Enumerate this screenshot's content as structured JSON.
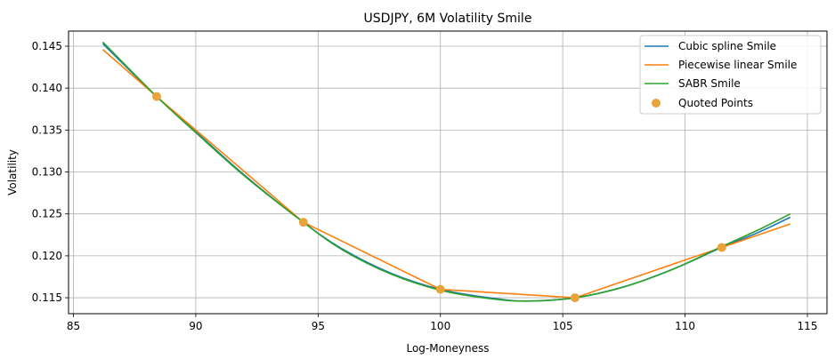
{
  "chart_data": {
    "type": "line",
    "title": "USDJPY, 6M Volatility Smile",
    "xlabel": "Log-Moneyness",
    "ylabel": "Volatility",
    "xlim": [
      84.8,
      115.8
    ],
    "ylim": [
      0.1131,
      0.1468
    ],
    "xticks": [
      85,
      90,
      95,
      100,
      105,
      110,
      115
    ],
    "yticks": [
      0.115,
      0.12,
      0.125,
      0.13,
      0.135,
      0.14,
      0.145
    ],
    "ytick_format": 3,
    "grid": true,
    "legend_position": "top-right",
    "series": [
      {
        "name": "Cubic spline Smile",
        "color": "#1f77b4",
        "x": [
          86.2,
          88.4,
          90,
          92,
          94.4,
          96,
          98,
          100,
          102,
          103.5,
          105.5,
          107.5,
          109.5,
          111.5,
          113,
          114.3
        ],
        "y": [
          0.1453,
          0.139,
          0.1348,
          0.1296,
          0.124,
          0.1208,
          0.1179,
          0.116,
          0.115,
          0.1146,
          0.115,
          0.1163,
          0.1184,
          0.121,
          0.1228,
          0.1246
        ]
      },
      {
        "name": "Piecewise linear Smile",
        "color": "#ff7f0e",
        "x": [
          86.2,
          88.4,
          94.4,
          100,
          105.5,
          111.5,
          114.3
        ],
        "y": [
          0.1446,
          0.139,
          0.124,
          0.116,
          0.115,
          0.121,
          0.1238
        ]
      },
      {
        "name": "SABR Smile",
        "color": "#2ca02c",
        "x": [
          86.2,
          88.4,
          90,
          92,
          94.4,
          96,
          98,
          100,
          102,
          103.5,
          105.5,
          107.5,
          109.5,
          111.5,
          113,
          114.3
        ],
        "y": [
          0.1455,
          0.139,
          0.1347,
          0.1295,
          0.124,
          0.1207,
          0.1178,
          0.1159,
          0.1149,
          0.1146,
          0.115,
          0.1163,
          0.1184,
          0.1211,
          0.1231,
          0.125
        ]
      }
    ],
    "scatter": {
      "name": "Quoted Points",
      "color": "#e8a33a",
      "x": [
        88.4,
        94.4,
        100,
        105.5,
        111.5
      ],
      "y": [
        0.139,
        0.124,
        0.116,
        0.115,
        0.121
      ]
    }
  }
}
